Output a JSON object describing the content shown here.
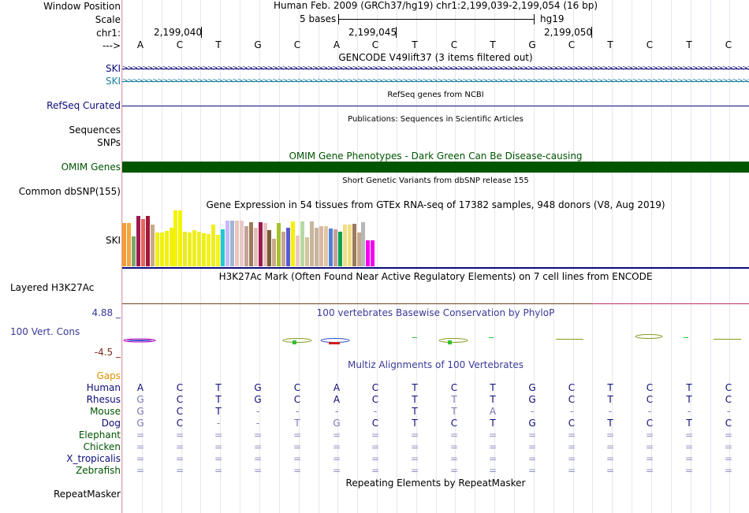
{
  "header": {
    "window_position_label": "Window Position",
    "window_position_value": "Human Feb. 2009 (GRCh37/hg19)   chr1:2,199,039-2,199,054 (16 bp)",
    "scale_label": "Scale",
    "scale_text": "5 bases",
    "assembly": "hg19",
    "chrom_label": "chr1:",
    "ticks": [
      "2,199,040",
      "2,199,045",
      "2,199,050"
    ],
    "strand_label": "--->"
  },
  "sequence": [
    "A",
    "C",
    "T",
    "G",
    "C",
    "A",
    "C",
    "T",
    "C",
    "T",
    "G",
    "C",
    "T",
    "C",
    "T",
    "C"
  ],
  "tracks": {
    "gencode": {
      "title": "GENCODE V49lift37 (3 items filtered out)",
      "items": [
        "SKI",
        "SKI"
      ],
      "item_colors": [
        "#0c0c78",
        "#1a7fa0"
      ]
    },
    "refseq": {
      "label": "RefSeq Curated",
      "title": "RefSeq genes from NCBI"
    },
    "publications": {
      "label": "Sequences",
      "title": "Publications: Sequences in Scientific Articles"
    },
    "snps_label": "SNPs",
    "omim": {
      "label": "OMIM Genes",
      "title": "OMIM Gene Phenotypes - Dark Green Can Be Disease-causing",
      "color": "#005500"
    },
    "dbsnp": {
      "label": "Common dbSNP(155)",
      "title": "Short Genetic Variants from dbSNP release 155"
    },
    "gtex": {
      "title": "Gene Expression in 54 tissues from GTEx RNA-seq of 17382 samples, 948 donors (V8, Aug 2019)",
      "label": "SKI"
    },
    "h3k27ac": {
      "label": "Layered H3K27Ac",
      "title": "H3K27Ac Mark (Often Found Near Active Regulatory Elements) on 7 cell lines from ENCODE"
    },
    "phylop": {
      "title": "100 vertebrates Basewise Conservation by PhyloP",
      "label": "100 Vert. Cons",
      "max": "4.88 _",
      "min": "-4.5 _"
    },
    "multiz": {
      "title": "Multiz Alignments of 100 Vertebrates",
      "gaps_label": "Gaps",
      "species": [
        {
          "name": "Human",
          "bases": [
            "A",
            "C",
            "T",
            "G",
            "C",
            "A",
            "C",
            "T",
            "C",
            "T",
            "G",
            "C",
            "T",
            "C",
            "T",
            "C"
          ]
        },
        {
          "name": "Rhesus",
          "bases": [
            "G",
            "C",
            "T",
            "G",
            "C",
            "A",
            "C",
            "T",
            "T",
            "T",
            "G",
            "C",
            "T",
            "C",
            "T",
            "C"
          ]
        },
        {
          "name": "Mouse",
          "bases": [
            "G",
            "C",
            "T",
            "-",
            "-",
            "-",
            "-",
            "T",
            "T",
            "A",
            "-",
            "-",
            "-",
            "-",
            "-",
            "-"
          ]
        },
        {
          "name": "Dog",
          "bases": [
            "G",
            "C",
            "-",
            "-",
            "T",
            "G",
            "C",
            "T",
            "C",
            "T",
            "G",
            "C",
            "T",
            "C",
            "T",
            "C"
          ]
        },
        {
          "name": "Elephant",
          "bases": [
            "=",
            "=",
            "=",
            "=",
            "=",
            "=",
            "=",
            "=",
            "=",
            "=",
            "=",
            "=",
            "=",
            "=",
            "=",
            "="
          ]
        },
        {
          "name": "Chicken",
          "bases": [
            "=",
            "=",
            "=",
            "=",
            "=",
            "=",
            "=",
            "=",
            "=",
            "=",
            "=",
            "=",
            "=",
            "=",
            "=",
            "="
          ]
        },
        {
          "name": "X_tropicalis",
          "bases": [
            "=",
            "=",
            "=",
            "=",
            "=",
            "=",
            "=",
            "=",
            "=",
            "=",
            "=",
            "=",
            "=",
            "=",
            "=",
            "="
          ]
        },
        {
          "name": "Zebrafish",
          "bases": [
            "=",
            "=",
            "=",
            "=",
            "=",
            "=",
            "=",
            "=",
            "=",
            "=",
            "=",
            "=",
            "=",
            "=",
            "=",
            "="
          ]
        }
      ]
    },
    "repeatmasker": {
      "label": "RepeatMasker",
      "title": "Repeating Elements by RepeatMasker"
    }
  },
  "chart_data": {
    "type": "bar",
    "title": "Gene Expression in 54 tissues from GTEx RNA-seq of 17382 samples, 948 donors (V8, Aug 2019)",
    "series_label": "SKI",
    "values": [
      55,
      55,
      38,
      64,
      60,
      64,
      53,
      43,
      43,
      45,
      49,
      71,
      71,
      44,
      43,
      46,
      44,
      42,
      41,
      53,
      40,
      47,
      58,
      58,
      58,
      58,
      51,
      56,
      49,
      56,
      55,
      46,
      35,
      55,
      44,
      49,
      57,
      39,
      57,
      37,
      57,
      49,
      51,
      51,
      48,
      47,
      44,
      53,
      53,
      54,
      43,
      56,
      33,
      33
    ],
    "colors": [
      "#f39c3a",
      "#f5a63e",
      "#7fa76a",
      "#9c1a51",
      "#e8645d",
      "#a2183b",
      "#c8a88a",
      "#f1f00e",
      "#f1f00e",
      "#f1f00e",
      "#f1f00e",
      "#f4f400",
      "#f4f400",
      "#ebeb20",
      "#eeee1f",
      "#eeee1f",
      "#eeee1f",
      "#eeee1f",
      "#f2f21c",
      "#eeee1f",
      "#f3f320",
      "#20c8d0",
      "#c9b7ff",
      "#9fb6d4",
      "#e8c7c0",
      "#e7c9c6",
      "#c4a397",
      "#9c7a5a",
      "#e2c0b8",
      "#9c1a51",
      "#e6c3bb",
      "#7a5c3a",
      "#c9a88a",
      "#a7c22d",
      "#c4a397",
      "#5a5ad0",
      "#f4f100",
      "#e8c7c0",
      "#b7d9a3",
      "#d4c49a",
      "#c9b49c",
      "#c9b49c",
      "#dcb8a4",
      "#e0c7a3",
      "#4f7fd7",
      "#c4a397",
      "#0ba151",
      "#f1dd85",
      "#f1dd85",
      "#9c7a5a",
      "#c8a88a",
      "#b7b7b7",
      "#f300f3",
      "#f300f3"
    ],
    "ylim": [
      0,
      72
    ]
  }
}
